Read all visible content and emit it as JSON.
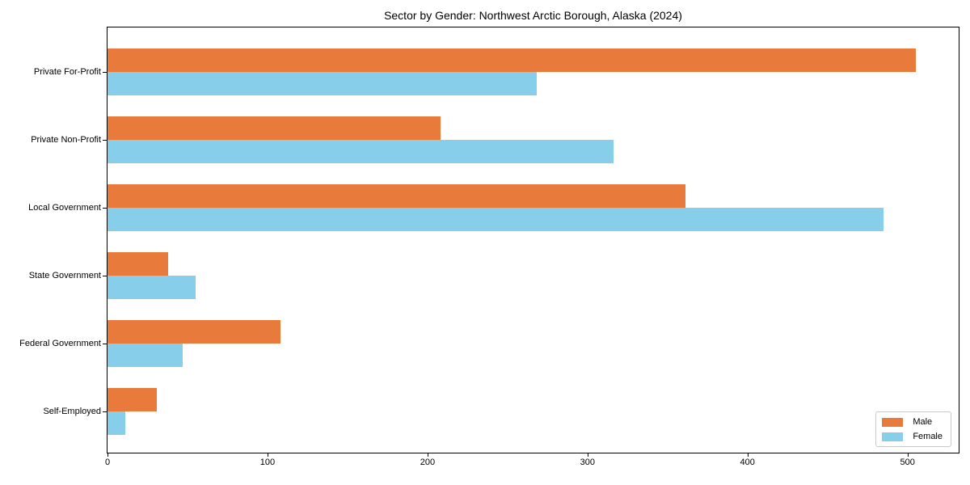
{
  "chart": {
    "title": "Sector by Gender: Northwest Arctic Borough, Alaska (2024)"
  },
  "chart_data": {
    "type": "bar",
    "orientation": "horizontal",
    "title": "Sector by Gender: Northwest Arctic Borough, Alaska (2024)",
    "xlabel": "",
    "ylabel": "",
    "categories": [
      "Private For-Profit",
      "Private Non-Profit",
      "Local Government",
      "State Government",
      "Federal Government",
      "Self-Employed"
    ],
    "series": [
      {
        "name": "Male",
        "color": "#e87b3c",
        "values": [
          505,
          208,
          361,
          38,
          108,
          31
        ]
      },
      {
        "name": "Female",
        "color": "#87ceeb",
        "values": [
          268,
          316,
          485,
          55,
          47,
          11
        ]
      }
    ],
    "xlim": [
      0,
      532
    ],
    "xticks": [
      0,
      100,
      200,
      300,
      400,
      500
    ],
    "grid": false,
    "legend_position": "lower right",
    "category_order": "top-to-bottom"
  }
}
